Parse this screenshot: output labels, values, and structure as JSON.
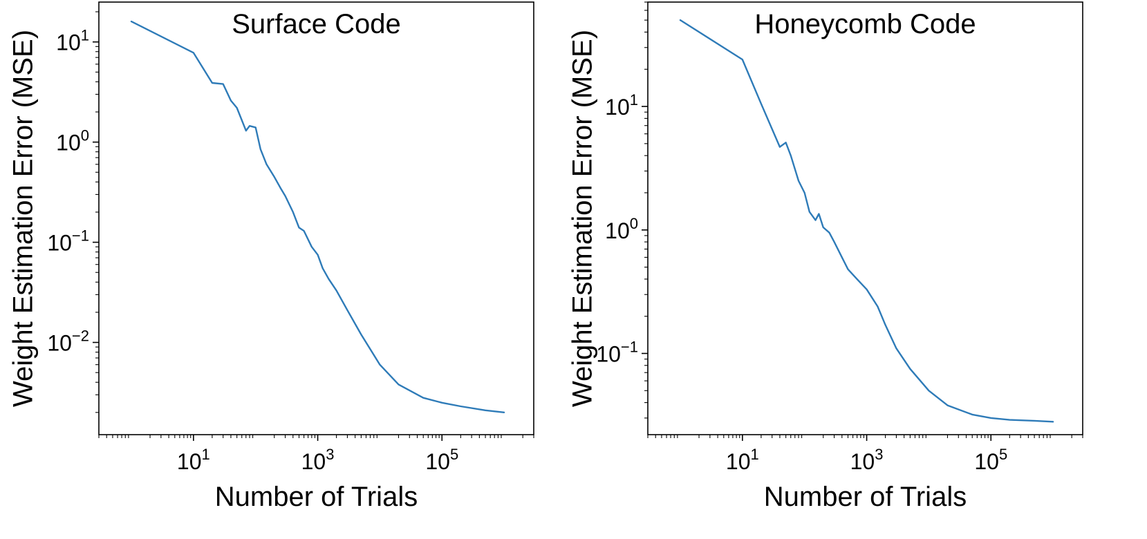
{
  "chart_data": [
    {
      "type": "line",
      "title": "Surface Code",
      "xlabel": "Number of Trials",
      "ylabel": "Weight Estimation Error (MSE)",
      "xscale": "log",
      "yscale": "log",
      "xlim": [
        0.3,
        3000000
      ],
      "ylim": [
        0.0012,
        25
      ],
      "xticks": [
        {
          "value": 10,
          "base": "10",
          "exp": "1"
        },
        {
          "value": 1000,
          "base": "10",
          "exp": "3"
        },
        {
          "value": 100000,
          "base": "10",
          "exp": "5"
        }
      ],
      "yticks": [
        {
          "value": 10,
          "base": "10",
          "exp": "1"
        },
        {
          "value": 1,
          "base": "10",
          "exp": "0"
        },
        {
          "value": 0.1,
          "base": "10",
          "exp": "−1"
        },
        {
          "value": 0.01,
          "base": "10",
          "exp": "−2"
        }
      ],
      "grid": false,
      "legend": null,
      "series": [
        {
          "color": "#2e7bb8",
          "x": [
            1,
            10,
            20,
            30,
            40,
            50,
            70,
            80,
            100,
            120,
            150,
            200,
            250,
            300,
            400,
            500,
            600,
            800,
            1000,
            1200,
            1500,
            2000,
            3000,
            5000,
            10000,
            20000,
            50000,
            100000,
            200000,
            500000,
            1000000
          ],
          "y": [
            16,
            7.8,
            3.9,
            3.8,
            2.6,
            2.2,
            1.3,
            1.45,
            1.4,
            0.85,
            0.6,
            0.45,
            0.35,
            0.29,
            0.2,
            0.14,
            0.13,
            0.09,
            0.075,
            0.055,
            0.043,
            0.033,
            0.021,
            0.012,
            0.006,
            0.0038,
            0.0028,
            0.0025,
            0.0023,
            0.0021,
            0.002
          ]
        }
      ]
    },
    {
      "type": "line",
      "title": "Honeycomb Code",
      "xlabel": "Number of Trials",
      "ylabel": "Weight Estimation Error (MSE)",
      "xscale": "log",
      "yscale": "log",
      "xlim": [
        0.3,
        3000000
      ],
      "ylim": [
        0.022,
        70
      ],
      "xticks": [
        {
          "value": 10,
          "base": "10",
          "exp": "1"
        },
        {
          "value": 1000,
          "base": "10",
          "exp": "3"
        },
        {
          "value": 100000,
          "base": "10",
          "exp": "5"
        }
      ],
      "yticks": [
        {
          "value": 10,
          "base": "10",
          "exp": "1"
        },
        {
          "value": 1,
          "base": "10",
          "exp": "0"
        },
        {
          "value": 0.1,
          "base": "10",
          "exp": "−1"
        }
      ],
      "grid": false,
      "legend": null,
      "series": [
        {
          "color": "#2e7bb8",
          "x": [
            1,
            10,
            20,
            40,
            50,
            60,
            80,
            100,
            120,
            150,
            170,
            200,
            250,
            300,
            400,
            500,
            700,
            1000,
            1500,
            2000,
            3000,
            5000,
            10000,
            20000,
            50000,
            100000,
            200000,
            500000,
            1000000
          ],
          "y": [
            50,
            24,
            10.5,
            4.7,
            5.1,
            4.0,
            2.5,
            2.0,
            1.4,
            1.2,
            1.35,
            1.05,
            0.95,
            0.8,
            0.6,
            0.48,
            0.4,
            0.33,
            0.24,
            0.17,
            0.11,
            0.075,
            0.05,
            0.038,
            0.032,
            0.03,
            0.029,
            0.0285,
            0.028
          ]
        }
      ]
    }
  ]
}
